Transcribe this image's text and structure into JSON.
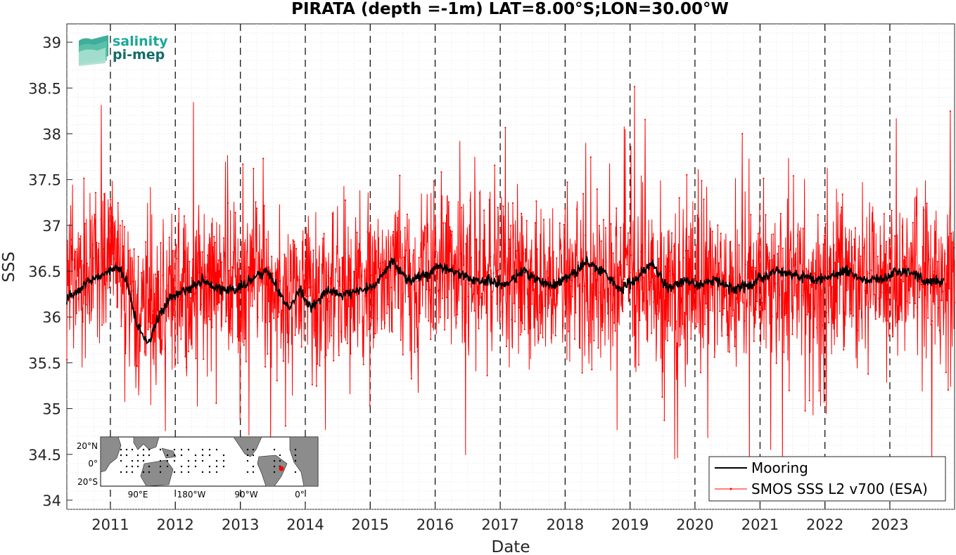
{
  "logo": {
    "line1": "salinity",
    "line2": "pi-mep",
    "color1": "#1aa89a",
    "color2": "#136b66"
  },
  "inset_map": {
    "lat_labels": [
      "20°N",
      "0°",
      "20°S"
    ],
    "lon_labels": [
      "90°E",
      "180°W",
      "90°W",
      "0°"
    ],
    "marker_color": "#ff0000"
  },
  "chart_data": {
    "type": "line",
    "title": "PIRATA (depth =-1m) LAT=8.00°S;LON=30.00°W",
    "xlabel": "Date",
    "ylabel": "SSS",
    "xlim": [
      "2010-05-01",
      "2023-12-31"
    ],
    "ylim": [
      33.9,
      39.2
    ],
    "yticks": [
      34,
      34.5,
      35,
      35.5,
      36,
      36.5,
      37,
      37.5,
      38,
      38.5,
      39
    ],
    "ytick_labels": [
      "34",
      "34.5",
      "35",
      "35.5",
      "36",
      "36.5",
      "37",
      "37.5",
      "38",
      "38.5",
      "39"
    ],
    "xticks": [
      "2011-01-01",
      "2012-01-01",
      "2013-01-01",
      "2014-01-01",
      "2015-01-01",
      "2016-01-01",
      "2017-01-01",
      "2018-01-01",
      "2019-01-01",
      "2020-01-01",
      "2021-01-01",
      "2022-01-01",
      "2023-01-01"
    ],
    "xtick_labels": [
      "2011",
      "2012",
      "2013",
      "2014",
      "2015",
      "2016",
      "2017",
      "2018",
      "2019",
      "2020",
      "2021",
      "2022",
      "2023"
    ],
    "grid": true,
    "year_boundaries_dashed": true,
    "legend_position": "bottom-right",
    "series": [
      {
        "name": "Mooring",
        "color": "#000000",
        "x": [
          "2010-05-01",
          "2010-07-01",
          "2010-09-01",
          "2010-11-01",
          "2011-01-01",
          "2011-02-01",
          "2011-04-01",
          "2011-06-01",
          "2011-08-01",
          "2011-10-01",
          "2011-12-01",
          "2012-03-01",
          "2012-06-01",
          "2012-09-01",
          "2012-12-01",
          "2013-03-01",
          "2013-06-01",
          "2013-08-01",
          "2013-10-01",
          "2013-12-01",
          "2014-02-01",
          "2014-05-01",
          "2014-08-01",
          "2014-11-01",
          "2015-02-01",
          "2015-05-01",
          "2015-08-01",
          "2015-11-01",
          "2016-02-01",
          "2016-05-01",
          "2016-08-01",
          "2016-11-01",
          "2017-02-01",
          "2017-05-01",
          "2017-08-01",
          "2017-11-01",
          "2018-02-01",
          "2018-05-01",
          "2018-08-01",
          "2018-11-01",
          "2019-02-01",
          "2019-05-01",
          "2019-08-01",
          "2019-11-01",
          "2020-02-01",
          "2020-05-01",
          "2020-08-01",
          "2020-11-01",
          "2021-02-01",
          "2021-05-01",
          "2021-08-01",
          "2021-11-01",
          "2022-02-01",
          "2022-05-01",
          "2022-08-01",
          "2022-11-01",
          "2023-02-01",
          "2023-05-01",
          "2023-08-01",
          "2023-11-01"
        ],
        "y": [
          36.2,
          36.3,
          36.4,
          36.45,
          36.5,
          36.55,
          36.4,
          35.9,
          35.7,
          36.0,
          36.2,
          36.3,
          36.4,
          36.3,
          36.3,
          36.4,
          36.5,
          36.3,
          36.1,
          36.3,
          36.1,
          36.3,
          36.25,
          36.3,
          36.35,
          36.6,
          36.4,
          36.45,
          36.55,
          36.5,
          36.4,
          36.4,
          36.35,
          36.5,
          36.4,
          36.35,
          36.45,
          36.6,
          36.5,
          36.3,
          36.4,
          36.6,
          36.3,
          36.4,
          36.35,
          36.4,
          36.3,
          36.35,
          36.45,
          36.5,
          36.45,
          36.4,
          36.45,
          36.5,
          36.4,
          36.4,
          36.5,
          36.5,
          36.4,
          36.4
        ]
      },
      {
        "name": "SMOS SSS L2 v700 (ESA)",
        "color": "#ff0000",
        "x": [
          "2010-05-01",
          "2010-08-01",
          "2010-11-01",
          "2011-01-15",
          "2011-04-01",
          "2011-07-01",
          "2011-10-01",
          "2012-01-01",
          "2012-04-01",
          "2012-07-01",
          "2012-10-01",
          "2013-01-01",
          "2013-04-01",
          "2013-07-01",
          "2013-10-01",
          "2014-01-01",
          "2014-04-01",
          "2014-07-01",
          "2014-10-01",
          "2015-01-01",
          "2015-04-01",
          "2015-07-01",
          "2015-10-01",
          "2016-01-01",
          "2016-04-01",
          "2016-07-01",
          "2016-10-01",
          "2017-01-01",
          "2017-04-01",
          "2017-07-01",
          "2017-10-01",
          "2018-01-01",
          "2018-04-01",
          "2018-07-01",
          "2018-10-01",
          "2019-01-01",
          "2019-04-01",
          "2019-07-01",
          "2019-10-01",
          "2020-01-01",
          "2020-04-01",
          "2020-07-01",
          "2020-10-01",
          "2021-01-01",
          "2021-04-01",
          "2021-07-01",
          "2021-10-01",
          "2022-01-01",
          "2022-04-01",
          "2022-07-01",
          "2022-10-01",
          "2023-01-01",
          "2023-04-01",
          "2023-07-01",
          "2023-10-01",
          "2023-12-31"
        ],
        "y": [
          36.3,
          36.4,
          36.5,
          36.6,
          36.2,
          35.9,
          36.0,
          36.3,
          36.4,
          36.3,
          36.4,
          36.3,
          36.5,
          36.4,
          36.2,
          36.3,
          36.3,
          36.2,
          36.3,
          36.4,
          36.5,
          36.4,
          36.4,
          36.6,
          36.5,
          36.4,
          36.4,
          36.4,
          36.5,
          36.4,
          36.4,
          36.5,
          36.6,
          36.4,
          36.3,
          36.5,
          36.5,
          36.3,
          36.3,
          36.3,
          36.4,
          36.3,
          36.3,
          36.4,
          36.5,
          36.4,
          36.4,
          36.4,
          36.5,
          36.4,
          36.4,
          36.4,
          36.5,
          36.4,
          36.4,
          36.4
        ],
        "envelope_min": 34.2,
        "envelope_max": 38.8
      }
    ]
  }
}
